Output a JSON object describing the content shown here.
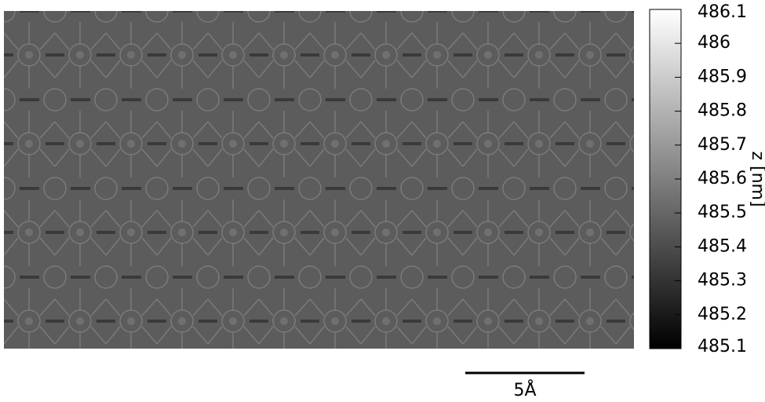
{
  "chart_data": {
    "type": "heatmap",
    "colorbar_label": "z [nm]",
    "zlim": [
      485.1,
      486.1
    ],
    "zticks": [
      485.1,
      485.2,
      485.3,
      485.4,
      485.5,
      485.6,
      485.7,
      485.8,
      485.9,
      486,
      486.1
    ],
    "colormap": [
      "#000000",
      "#ffffff"
    ],
    "scale_bar": "5Å"
  }
}
